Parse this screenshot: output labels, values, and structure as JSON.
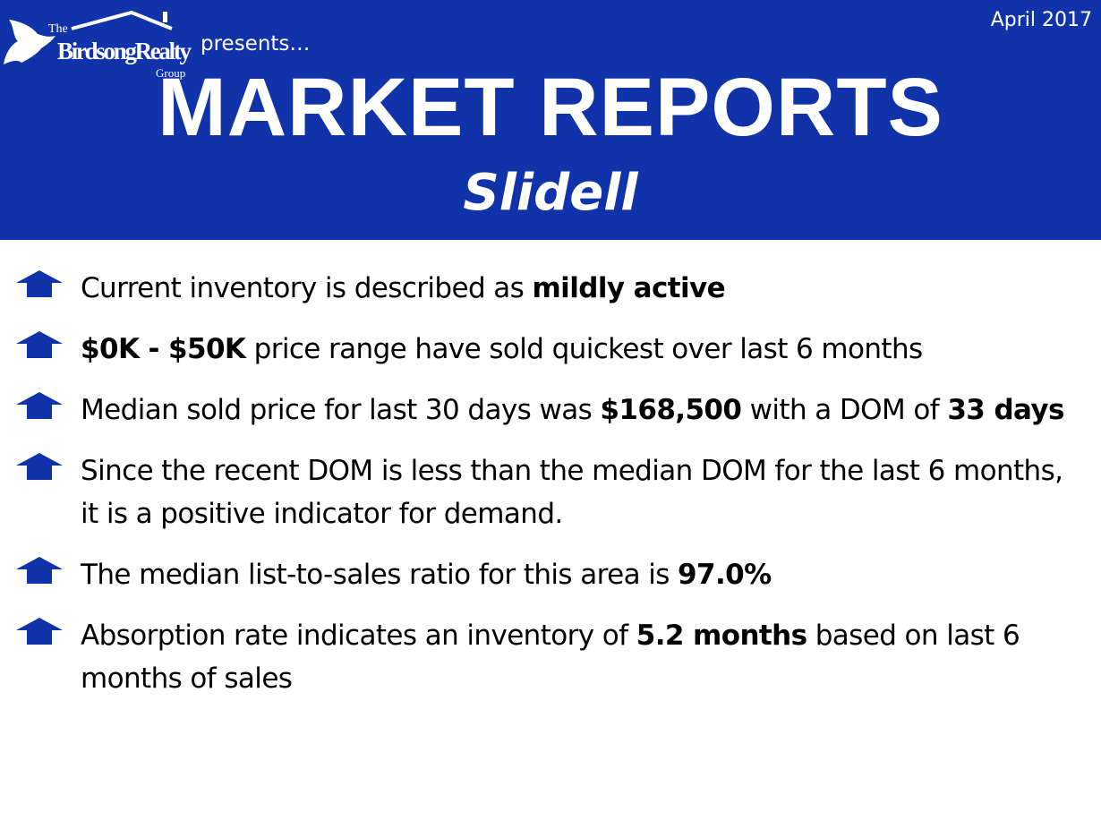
{
  "header": {
    "date": "April 2017",
    "logo_text": "The Birdsong Realty Group",
    "presents": "presents…",
    "title": "MARKET REPORTS",
    "subtitle": "Slidell"
  },
  "colors": {
    "brand": "#1133aa"
  },
  "bullet_icon": "arrow-up-icon",
  "bullets": [
    {
      "parts": [
        {
          "t": "Current inventory is described as "
        },
        {
          "t": "mildly active",
          "b": true
        }
      ]
    },
    {
      "parts": [
        {
          "t": "$0K - $50K",
          "b": true
        },
        {
          "t": " price range have sold quickest over last 6 months"
        }
      ]
    },
    {
      "parts": [
        {
          "t": "Median sold price for last 30 days was "
        },
        {
          "t": "$168,500",
          "b": true
        },
        {
          "t": " with a DOM of "
        },
        {
          "t": "33 days",
          "b": true
        }
      ]
    },
    {
      "parts": [
        {
          "t": "Since the recent DOM is less than the median DOM for the last 6 months, it is a positive indicator for demand."
        }
      ]
    },
    {
      "parts": [
        {
          "t": "The median list-to-sales ratio for this area is "
        },
        {
          "t": "97.0%",
          "b": true
        }
      ]
    },
    {
      "parts": [
        {
          "t": "Absorption rate indicates an inventory of "
        },
        {
          "t": "5.2 months",
          "b": true
        },
        {
          "t": " based on last 6 months of sales"
        }
      ]
    }
  ]
}
